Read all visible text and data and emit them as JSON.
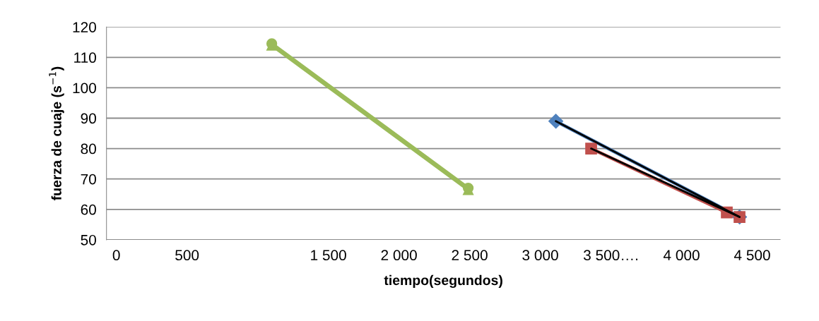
{
  "chart_data": {
    "type": "line",
    "xlabel": "tiempo(segundos)",
    "ylabel": "fuerza de cuaje (s$^{−1}$)",
    "xlim": [
      -70,
      4700
    ],
    "ylim": [
      50,
      120
    ],
    "xticks": [
      {
        "value": 0,
        "label": "0"
      },
      {
        "value": 500,
        "label": "500"
      },
      {
        "value": 1500,
        "label": "1 500"
      },
      {
        "value": 2000,
        "label": "2 000"
      },
      {
        "value": 2500,
        "label": "2 500"
      },
      {
        "value": 3000,
        "label": "3 000"
      },
      {
        "value": 3500,
        "label": "3 500…."
      },
      {
        "value": 4000,
        "label": "4 000"
      },
      {
        "value": 4500,
        "label": "4 500"
      }
    ],
    "yticks": [
      50,
      60,
      70,
      80,
      90,
      100,
      110,
      120
    ],
    "grid": "y",
    "legend": false,
    "series": [
      {
        "color": "#9bbb59",
        "x": [
          1100,
          2490
        ],
        "values": [
          114,
          66.5
        ],
        "marker": "triangle"
      },
      {
        "color": "#9bbb59",
        "x": [
          1100,
          2490
        ],
        "values": [
          114.5,
          67
        ],
        "marker": "circle"
      },
      {
        "color": "#4f81bd",
        "x": [
          3110,
          4410
        ],
        "values": [
          89,
          57.5
        ],
        "marker": "diamond"
      },
      {
        "color": "#c0504d",
        "x": [
          3360,
          4320,
          4410
        ],
        "values": [
          80,
          59,
          57.5
        ],
        "marker": "square"
      },
      {
        "color": "#000000",
        "x": [
          3110,
          4410
        ],
        "values": [
          89,
          57.5
        ],
        "marker": "none"
      },
      {
        "color": "#000000",
        "x": [
          3360,
          4410
        ],
        "values": [
          80,
          57.5
        ],
        "marker": "none"
      }
    ]
  }
}
